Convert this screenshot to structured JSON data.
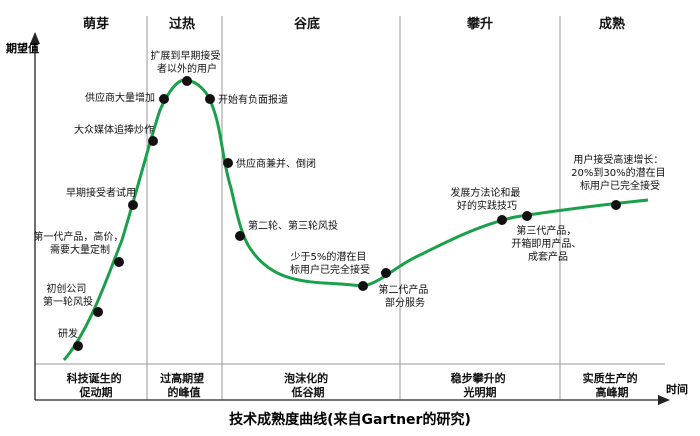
{
  "phases": [
    "萌芽",
    "过热",
    "谷底",
    "攀升",
    "成熟"
  ],
  "bands": [
    [
      "科技诞生的",
      "促动期"
    ],
    [
      "过高期望",
      "的峰值"
    ],
    [
      "泡沫化的",
      "低谷期"
    ],
    [
      "稳步攀升的",
      "光明期"
    ],
    [
      "实质生产的",
      "高峰期"
    ]
  ],
  "y_axis_label": "期望值",
  "x_axis_label": "时间",
  "title": "技术成熟度曲线(来自Gartner的研究)",
  "annotations": [
    {
      "lines": [
        "研发"
      ]
    },
    {
      "lines": [
        "初创公司",
        "第一轮风投"
      ]
    },
    {
      "lines": [
        "第一代产品，高价，",
        "需要大量定制"
      ]
    },
    {
      "lines": [
        "早期接受者试用"
      ]
    },
    {
      "lines": [
        "大众媒体追捧炒作"
      ]
    },
    {
      "lines": [
        "供应商大量增加"
      ]
    },
    {
      "lines": [
        "扩展到早期接受",
        "者以外的用户"
      ]
    },
    {
      "lines": [
        "开始有负面报道"
      ]
    },
    {
      "lines": [
        "供应商兼并、倒闭"
      ]
    },
    {
      "lines": [
        "第二轮、第三轮风投"
      ]
    },
    {
      "lines": [
        "少于5%的潜在目",
        "标用户已完全接受"
      ]
    },
    {
      "lines": [
        "第二代产品",
        "部分服务"
      ]
    },
    {
      "lines": [
        "发展方法论和最",
        "好的实践技巧"
      ]
    },
    {
      "lines": [
        "第三代产品，",
        "开箱即用产品、",
        "成套产品"
      ]
    },
    {
      "lines": [
        "用户接受高速增长：",
        "20%到30%的潜在目",
        "标用户已完全接受"
      ]
    }
  ],
  "colors": {
    "curve": "#1aa04a",
    "dots": "#111111",
    "axis": "#222222",
    "dividers": "#999999"
  }
}
